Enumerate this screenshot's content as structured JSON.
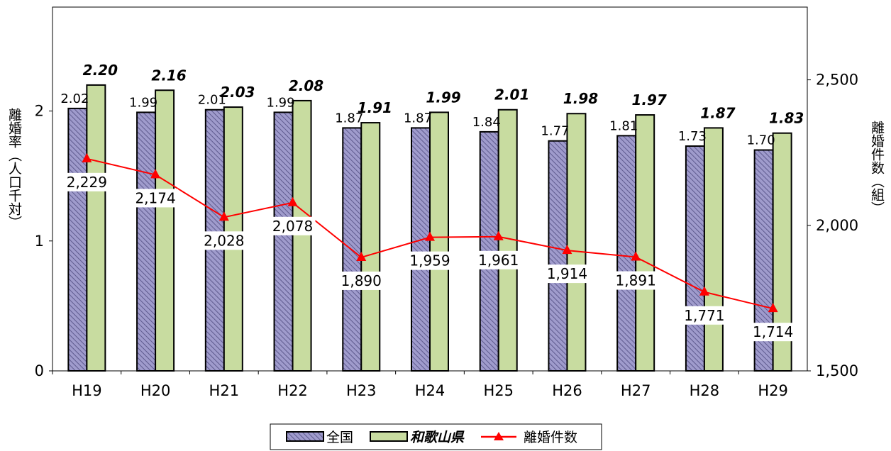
{
  "chart_data": {
    "type": "bar",
    "categories": [
      "H19",
      "H20",
      "H21",
      "H22",
      "H23",
      "H24",
      "H25",
      "H26",
      "H27",
      "H28",
      "H29"
    ],
    "series": [
      {
        "name": "全国",
        "type": "bar",
        "axis": "left",
        "values": [
          2.02,
          1.99,
          2.01,
          1.99,
          1.87,
          1.87,
          1.84,
          1.77,
          1.81,
          1.73,
          1.7
        ],
        "labels": [
          "2.02",
          "1.99",
          "2.01",
          "1.99",
          "1.87",
          "1.87",
          "1.84",
          "1.77",
          "1.81",
          "1.73",
          "1.70"
        ],
        "color": "#9a96c8"
      },
      {
        "name": "和歌山県",
        "type": "bar",
        "axis": "left",
        "values": [
          2.2,
          2.16,
          2.03,
          2.08,
          1.91,
          1.99,
          2.01,
          1.98,
          1.97,
          1.87,
          1.83
        ],
        "labels": [
          "2.20",
          "2.16",
          "2.03",
          "2.08",
          "1.91",
          "1.99",
          "2.01",
          "1.98",
          "1.97",
          "1.87",
          "1.83"
        ],
        "color": "#c8dca0"
      },
      {
        "name": "離婚件数",
        "type": "line",
        "axis": "right",
        "values": [
          2229,
          2174,
          2028,
          2078,
          1890,
          1959,
          1961,
          1914,
          1891,
          1771,
          1714
        ],
        "labels": [
          "2,229",
          "2,174",
          "2,028",
          "2,078",
          "1,890",
          "1,959",
          "1,961",
          "1,914",
          "1,891",
          "1,771",
          "1,714"
        ],
        "color": "#ff0000"
      }
    ],
    "y_left": {
      "label": "離婚率（人口千対）",
      "ylim": [
        0,
        2.8
      ],
      "ticks": [
        "0",
        "1",
        "2"
      ],
      "tick_values": [
        0,
        1,
        2
      ]
    },
    "y_right": {
      "label": "離婚件数（組）",
      "ylim": [
        1500,
        2750
      ],
      "ticks": [
        "1,500",
        "2,000",
        "2,500"
      ],
      "tick_values": [
        1500,
        2000,
        2500
      ]
    },
    "legend": {
      "placement": "bottom-center",
      "entries": [
        "全国",
        "和歌山県",
        "離婚件数"
      ]
    },
    "grid": false
  }
}
